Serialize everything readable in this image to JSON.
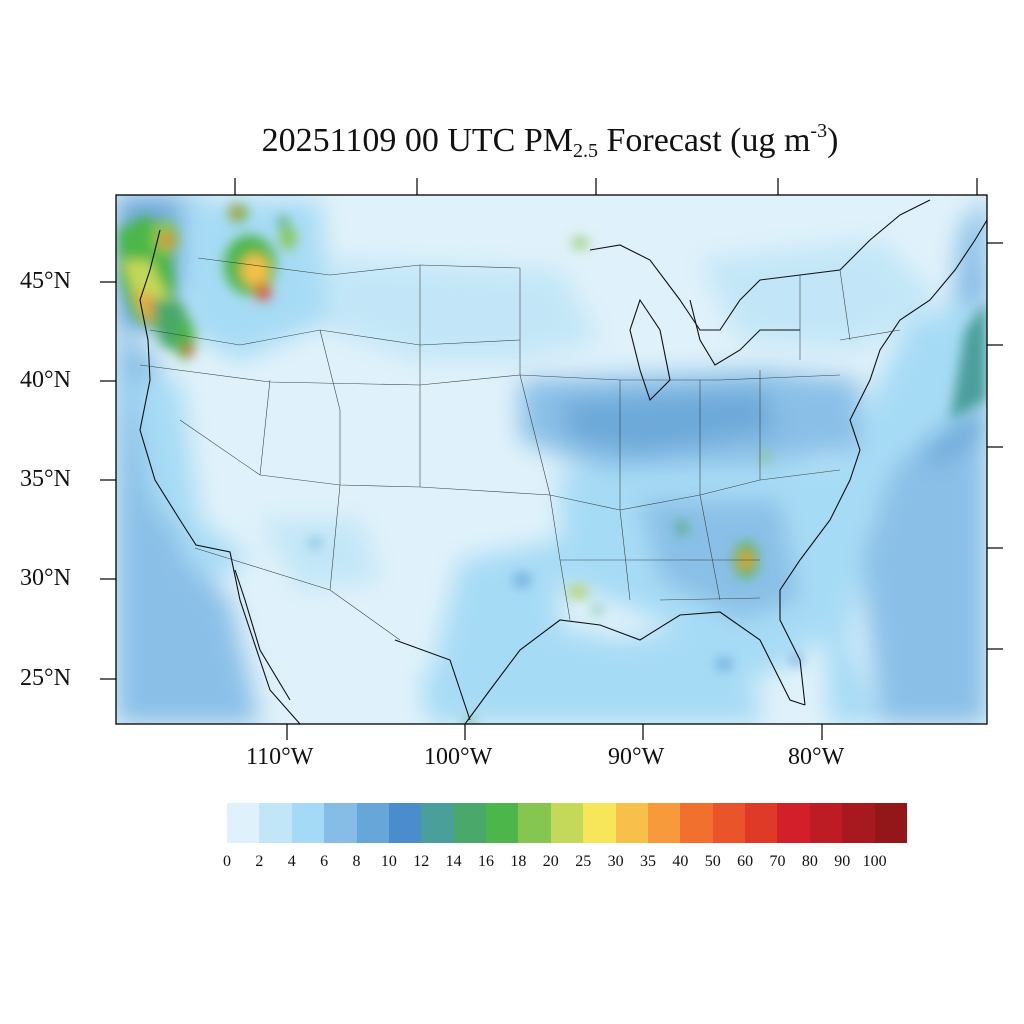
{
  "title": {
    "prefix": "20251109 00 UTC PM",
    "subscript": "2.5",
    "middle": " Forecast (ug m",
    "superscript": "-3",
    "suffix": ")"
  },
  "map": {
    "region": "Contiguous United States",
    "lat_labels": [
      "45°N",
      "40°N",
      "35°N",
      "30°N",
      "25°N"
    ],
    "lon_labels": [
      "110°W",
      "100°W",
      "90°W",
      "80°W"
    ],
    "background_level_color": "#dff1fa",
    "hotspots": [
      {
        "name": "pacific-northwest-coast",
        "max_level": 40
      },
      {
        "name": "puget-sound",
        "max_level": 50
      },
      {
        "name": "northern-idaho-montana",
        "max_level": 70
      },
      {
        "name": "southwest-oregon",
        "max_level": 70
      },
      {
        "name": "southwest-georgia",
        "max_level": 40
      },
      {
        "name": "louisiana",
        "max_level": 30
      },
      {
        "name": "upper-michigan",
        "max_level": 20
      }
    ]
  },
  "legend": {
    "levels": [
      "0",
      "2",
      "4",
      "6",
      "8",
      "10",
      "12",
      "14",
      "16",
      "18",
      "20",
      "25",
      "30",
      "35",
      "40",
      "50",
      "60",
      "70",
      "80",
      "90",
      "100"
    ],
    "colors": [
      "#dff1fa",
      "#c1e6f7",
      "#a4daf5",
      "#86bde6",
      "#67a6d8",
      "#4a8ccc",
      "#4b9f9b",
      "#4aa86b",
      "#4cb64a",
      "#85c650",
      "#c4d85a",
      "#f7e55a",
      "#f7c04a",
      "#f79a3b",
      "#f2702e",
      "#ea542b",
      "#de3a27",
      "#d21f2a",
      "#bd1c25",
      "#a8191f",
      "#931619"
    ]
  }
}
